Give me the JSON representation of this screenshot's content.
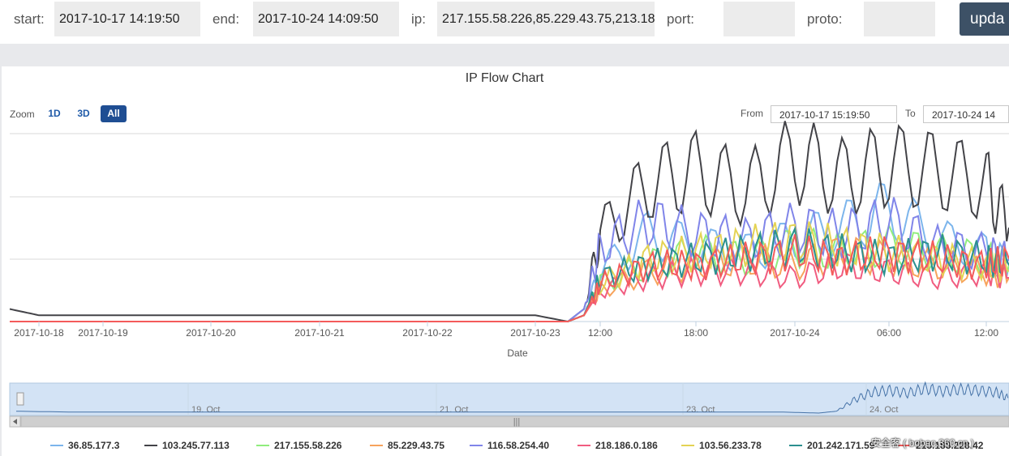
{
  "filters": {
    "start_label": "start:",
    "start_value": "2017-10-17 14:19:50",
    "end_label": "end:",
    "end_value": "2017-10-24 14:09:50",
    "ip_label": "ip:",
    "ip_value": "217.155.58.226,85.229.43.75,213.18",
    "port_label": "port:",
    "port_value": "",
    "proto_label": "proto:",
    "proto_value": "",
    "update_label": "upda"
  },
  "range_selector": {
    "zoom_label": "Zoom",
    "buttons": [
      "1D",
      "3D",
      "All"
    ],
    "active": "All",
    "from_label": "From",
    "from_value": "2017-10-17 15:19:50",
    "to_label": "To",
    "to_value": "2017-10-24 14"
  },
  "watermark": "安全客 ( bobao.360.cn )",
  "colors": {
    "accent": "#1f4e93",
    "button": "#3d5166",
    "navigator_fill": "#d3e3f5"
  },
  "chart_data": {
    "type": "line",
    "title": "IP Flow Chart",
    "xlabel": "Date",
    "ylabel": "",
    "x_range": [
      "2017-10-17 14:19",
      "2017-10-24 14:09"
    ],
    "grid": "horizontal",
    "legend_position": "bottom",
    "x_ticks": [
      "2017-10-18",
      "2017-10-19",
      "2017-10-20",
      "2017-10-21",
      "2017-10-22",
      "2017-10-23",
      "12:00",
      "18:00",
      "2017-10-24",
      "06:00",
      "12:00"
    ],
    "navigator_ticks": [
      "19. Oct",
      "21. Oct",
      "23. Oct",
      "24. Oct"
    ],
    "series_time": [
      "2017-10-17 14:19",
      "2017-10-18 00:00",
      "2017-10-19 00:00",
      "2017-10-20 00:00",
      "2017-10-21 00:00",
      "2017-10-22 00:00",
      "2017-10-23 00:00",
      "2017-10-23 06:00",
      "2017-10-23 09:00",
      "2017-10-23 12:00",
      "2017-10-23 15:00",
      "2017-10-23 18:00",
      "2017-10-23 21:00",
      "2017-10-24 00:00",
      "2017-10-24 03:00",
      "2017-10-24 06:00",
      "2017-10-24 09:00",
      "2017-10-24 12:00",
      "2017-10-24 14:09"
    ],
    "series": [
      {
        "name": "36.85.177.3",
        "color": "#7cb5ec",
        "values": [
          0,
          0,
          0,
          0,
          0,
          0,
          0,
          0,
          1,
          8,
          14,
          12,
          11,
          13,
          15,
          18,
          13,
          11,
          9
        ]
      },
      {
        "name": "103.245.77.113",
        "color": "#434348",
        "values": [
          2,
          1,
          1,
          1,
          1,
          1,
          1,
          0,
          2,
          14,
          22,
          24,
          21,
          26,
          23,
          25,
          24,
          22,
          15
        ]
      },
      {
        "name": "217.155.58.226",
        "color": "#90ed7d",
        "values": [
          0,
          0,
          0,
          0,
          0,
          0,
          0,
          0,
          1,
          6,
          9,
          11,
          10,
          12,
          11,
          12,
          11,
          10,
          9
        ]
      },
      {
        "name": "85.229.43.75",
        "color": "#f7a35c",
        "values": [
          0,
          0,
          0,
          0,
          0,
          0,
          0,
          0,
          1,
          5,
          8,
          9,
          10,
          9,
          11,
          10,
          9,
          8,
          7
        ]
      },
      {
        "name": "116.58.254.40",
        "color": "#8085e9",
        "values": [
          0,
          0,
          0,
          0,
          0,
          0,
          0,
          0,
          2,
          12,
          16,
          14,
          13,
          15,
          14,
          16,
          12,
          11,
          10
        ]
      },
      {
        "name": "218.186.0.186",
        "color": "#f15c80",
        "values": [
          0,
          0,
          0,
          0,
          0,
          0,
          0,
          0,
          1,
          5,
          7,
          8,
          8,
          7,
          9,
          8,
          7,
          8,
          7
        ]
      },
      {
        "name": "103.56.233.78",
        "color": "#e4d354",
        "values": [
          0,
          0,
          0,
          0,
          0,
          0,
          0,
          0,
          1,
          6,
          10,
          11,
          12,
          13,
          12,
          11,
          10,
          9,
          8
        ]
      },
      {
        "name": "201.242.171.59",
        "color": "#2b908f",
        "values": [
          0,
          0,
          0,
          0,
          0,
          0,
          0,
          0,
          1,
          7,
          9,
          10,
          11,
          12,
          11,
          10,
          11,
          10,
          9
        ]
      },
      {
        "name": "213.183.228.42",
        "color": "#f45b5b",
        "values": [
          0,
          0,
          0,
          0,
          0,
          0,
          0,
          0,
          1,
          6,
          9,
          9,
          10,
          11,
          10,
          11,
          10,
          9,
          10
        ]
      }
    ]
  }
}
